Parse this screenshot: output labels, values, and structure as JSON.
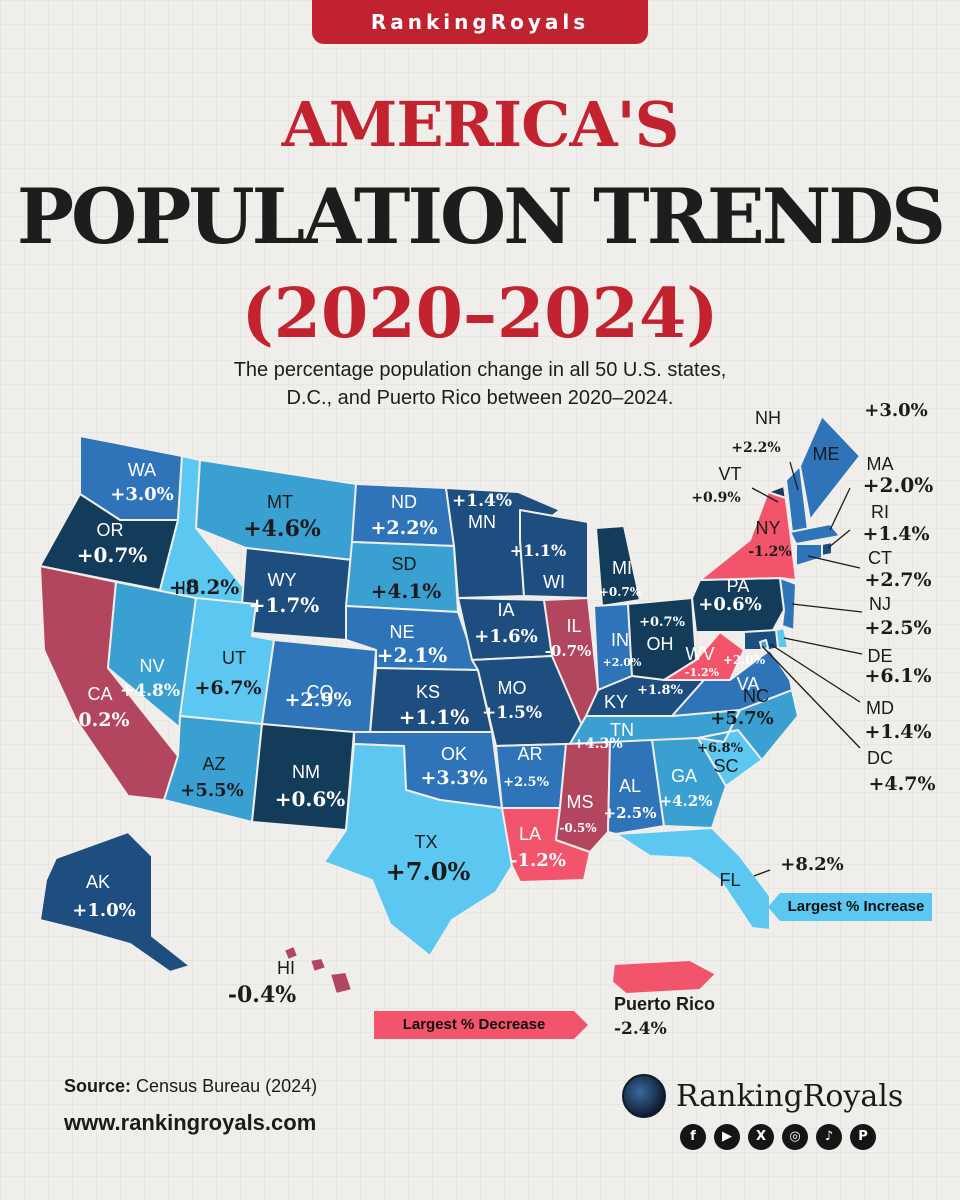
{
  "header": {
    "brand_tab": "RankingRoyals",
    "title_line1": "AMERICA'S",
    "title_line2": "POPULATION TRENDS",
    "title_line3": "(2020–2024)",
    "subtitle_line1": "The percentage population change in all 50 U.S. states,",
    "subtitle_line2": "D.C., and Puerto Rico between 2020–2024."
  },
  "colors": {
    "strong_decrease": "#f2556b",
    "decrease": "#b2465f",
    "low_increase": "#123c5a",
    "mid_increase": "#1e4e80",
    "increase": "#2f74b8",
    "high_increase": "#3aa0d2",
    "highest_increase": "#5cc8f1",
    "brand_red": "#c3232e"
  },
  "map": {
    "states": [
      {
        "abbr": "WA",
        "value": "+3.0%"
      },
      {
        "abbr": "OR",
        "value": "+0.7%"
      },
      {
        "abbr": "CA",
        "value": "-0.2%"
      },
      {
        "abbr": "ID",
        "value": "+8.2%"
      },
      {
        "abbr": "NV",
        "value": "+4.8%"
      },
      {
        "abbr": "MT",
        "value": "+4.6%"
      },
      {
        "abbr": "WY",
        "value": "+1.7%"
      },
      {
        "abbr": "UT",
        "value": "+6.7%"
      },
      {
        "abbr": "AZ",
        "value": "+5.5%"
      },
      {
        "abbr": "CO",
        "value": "+2.9%"
      },
      {
        "abbr": "NM",
        "value": "+0.6%"
      },
      {
        "abbr": "ND",
        "value": "+2.2%"
      },
      {
        "abbr": "SD",
        "value": "+4.1%"
      },
      {
        "abbr": "NE",
        "value": "+2.1%"
      },
      {
        "abbr": "KS",
        "value": "+1.1%"
      },
      {
        "abbr": "OK",
        "value": "+3.3%"
      },
      {
        "abbr": "TX",
        "value": "+7.0%"
      },
      {
        "abbr": "MN",
        "value": "+1.4%"
      },
      {
        "abbr": "IA",
        "value": "+1.6%"
      },
      {
        "abbr": "MO",
        "value": "+1.5%"
      },
      {
        "abbr": "AR",
        "value": "+2.5%"
      },
      {
        "abbr": "LA",
        "value": "-1.2%"
      },
      {
        "abbr": "WI",
        "value": "+1.1%"
      },
      {
        "abbr": "IL",
        "value": "-0.7%"
      },
      {
        "abbr": "MI",
        "value": "+0.7%"
      },
      {
        "abbr": "IN",
        "value": "+2.0%"
      },
      {
        "abbr": "OH",
        "value": "+0.7%"
      },
      {
        "abbr": "KY",
        "value": "+1.8%"
      },
      {
        "abbr": "TN",
        "value": "+4.3%"
      },
      {
        "abbr": "MS",
        "value": "-0.5%"
      },
      {
        "abbr": "AL",
        "value": "+2.5%"
      },
      {
        "abbr": "GA",
        "value": "+4.2%"
      },
      {
        "abbr": "FL",
        "value": "+8.2%"
      },
      {
        "abbr": "SC",
        "value": "+6.8%"
      },
      {
        "abbr": "NC",
        "value": "+5.7%"
      },
      {
        "abbr": "VA",
        "value": "+2.0%"
      },
      {
        "abbr": "WV",
        "value": "-1.2%"
      },
      {
        "abbr": "PA",
        "value": "+0.6%"
      },
      {
        "abbr": "NY",
        "value": "-1.2%"
      },
      {
        "abbr": "VT",
        "value": "+0.9%"
      },
      {
        "abbr": "NH",
        "value": "+2.2%"
      },
      {
        "abbr": "ME",
        "value": "+3.0%"
      },
      {
        "abbr": "MA",
        "value": "+2.0%"
      },
      {
        "abbr": "RI",
        "value": "+1.4%"
      },
      {
        "abbr": "CT",
        "value": "+2.7%"
      },
      {
        "abbr": "NJ",
        "value": "+2.5%"
      },
      {
        "abbr": "DE",
        "value": "+6.1%"
      },
      {
        "abbr": "MD",
        "value": "+1.4%"
      },
      {
        "abbr": "DC",
        "value": "+4.7%"
      },
      {
        "abbr": "AK",
        "value": "+1.0%"
      },
      {
        "abbr": "HI",
        "value": "-0.4%"
      }
    ],
    "puerto_rico": {
      "name": "Puerto Rico",
      "value": "-2.4%"
    },
    "largest_increase_label": "Largest % Increase",
    "largest_decrease_label": "Largest % Decrease"
  },
  "footer": {
    "source_label": "Source:",
    "source_value": "Census Bureau (2024)",
    "website": "www.rankingroyals.com",
    "logo_text": "RankingRoyals",
    "social_icons": [
      "facebook-icon",
      "youtube-icon",
      "x-icon",
      "instagram-icon",
      "tiktok-icon",
      "pinterest-icon"
    ]
  }
}
